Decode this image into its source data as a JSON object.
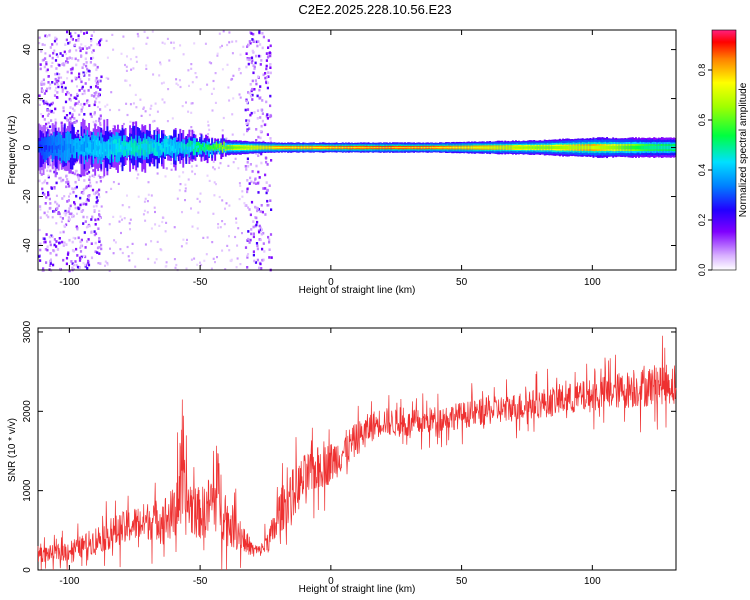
{
  "title": "C2E2.2025.228.10.56.E23",
  "colors": {
    "series": "#ee3030",
    "axis": "#000000",
    "background": "#ffffff"
  },
  "colorbar": {
    "label": "Normalized spectral amplitude",
    "range": [
      0,
      0.96
    ],
    "ticks": [
      {
        "v": 0.0,
        "label": "0.0"
      },
      {
        "v": 0.2,
        "label": "0.2"
      },
      {
        "v": 0.4,
        "label": "0.4"
      },
      {
        "v": 0.6,
        "label": "0.6"
      },
      {
        "v": 0.8,
        "label": "0.8"
      }
    ]
  },
  "chart_data": [
    {
      "type": "heatmap",
      "xlabel": "Height of straight line (km)",
      "ylabel": "Frequency (Hz)",
      "xlim": [
        -112,
        132
      ],
      "ylim": [
        -50,
        48
      ],
      "xticks": [
        {
          "v": -100,
          "label": "-100"
        },
        {
          "v": -50,
          "label": "-50"
        },
        {
          "v": 0,
          "label": "0"
        },
        {
          "v": 50,
          "label": "50"
        },
        {
          "v": 100,
          "label": "100"
        }
      ],
      "yticks": [
        {
          "v": -40,
          "label": "-40"
        },
        {
          "v": -20,
          "label": "-20"
        },
        {
          "v": 0,
          "label": "0"
        },
        {
          "v": 20,
          "label": "20"
        },
        {
          "v": 40,
          "label": "40"
        }
      ],
      "noise_bands_km": [
        [
          -112,
          -88
        ],
        [
          -33,
          -23
        ]
      ],
      "band_center_hz": 0,
      "band_profile": {
        "x": [
          -112,
          -100,
          -88,
          -75,
          -60,
          -50,
          -40,
          -30,
          -20,
          -10,
          0,
          20,
          40,
          60,
          80,
          90,
          100,
          110,
          120,
          132
        ],
        "half_width_hz": [
          7,
          8,
          8,
          7,
          6,
          4,
          3,
          2.5,
          2,
          2,
          2,
          2,
          2,
          2.5,
          3,
          3.5,
          4,
          4,
          4,
          4
        ],
        "peak_amplitude": [
          0.3,
          0.4,
          0.45,
          0.5,
          0.45,
          0.55,
          0.7,
          0.8,
          0.9,
          0.9,
          0.92,
          0.95,
          0.93,
          0.85,
          0.75,
          0.8,
          0.85,
          0.75,
          0.6,
          0.55
        ]
      }
    },
    {
      "type": "line",
      "xlabel": "Height of straight line (km)",
      "ylabel": "SNR (10 * v/v)",
      "xlim": [
        -112,
        132
      ],
      "ylim": [
        0,
        3050
      ],
      "xticks": [
        {
          "v": -100,
          "label": "-100"
        },
        {
          "v": -50,
          "label": "-50"
        },
        {
          "v": 0,
          "label": "0"
        },
        {
          "v": 50,
          "label": "50"
        },
        {
          "v": 100,
          "label": "100"
        }
      ],
      "yticks": [
        {
          "v": 0,
          "label": "0"
        },
        {
          "v": 1000,
          "label": "1000"
        },
        {
          "v": 2000,
          "label": "2000"
        },
        {
          "v": 3000,
          "label": "3000"
        }
      ],
      "series": [
        {
          "x": [
            -112,
            -105,
            -100,
            -95,
            -90,
            -85,
            -80,
            -75,
            -70,
            -65,
            -60,
            -58,
            -55,
            -50,
            -47,
            -43,
            -40,
            -36,
            -33,
            -30,
            -27,
            -25,
            -22,
            -20,
            -15,
            -10,
            -5,
            0,
            5,
            10,
            15,
            20,
            25,
            30,
            40,
            50,
            60,
            70,
            80,
            90,
            100,
            110,
            120,
            125,
            132
          ],
          "y": [
            200,
            210,
            250,
            300,
            380,
            450,
            520,
            580,
            620,
            640,
            700,
            1050,
            850,
            700,
            780,
            1000,
            620,
            500,
            380,
            260,
            240,
            330,
            480,
            700,
            950,
            1150,
            1280,
            1350,
            1500,
            1650,
            1800,
            1880,
            1850,
            1830,
            1900,
            1950,
            2000,
            2050,
            2100,
            2150,
            2200,
            2260,
            2300,
            2350,
            2350
          ],
          "amp": [
            150,
            150,
            200,
            200,
            250,
            280,
            300,
            320,
            350,
            380,
            500,
            900,
            600,
            450,
            550,
            750,
            450,
            350,
            250,
            120,
            100,
            200,
            300,
            400,
            450,
            450,
            400,
            380,
            350,
            300,
            280,
            250,
            250,
            250,
            240,
            240,
            250,
            260,
            270,
            280,
            300,
            330,
            360,
            380,
            380
          ]
        }
      ]
    }
  ]
}
